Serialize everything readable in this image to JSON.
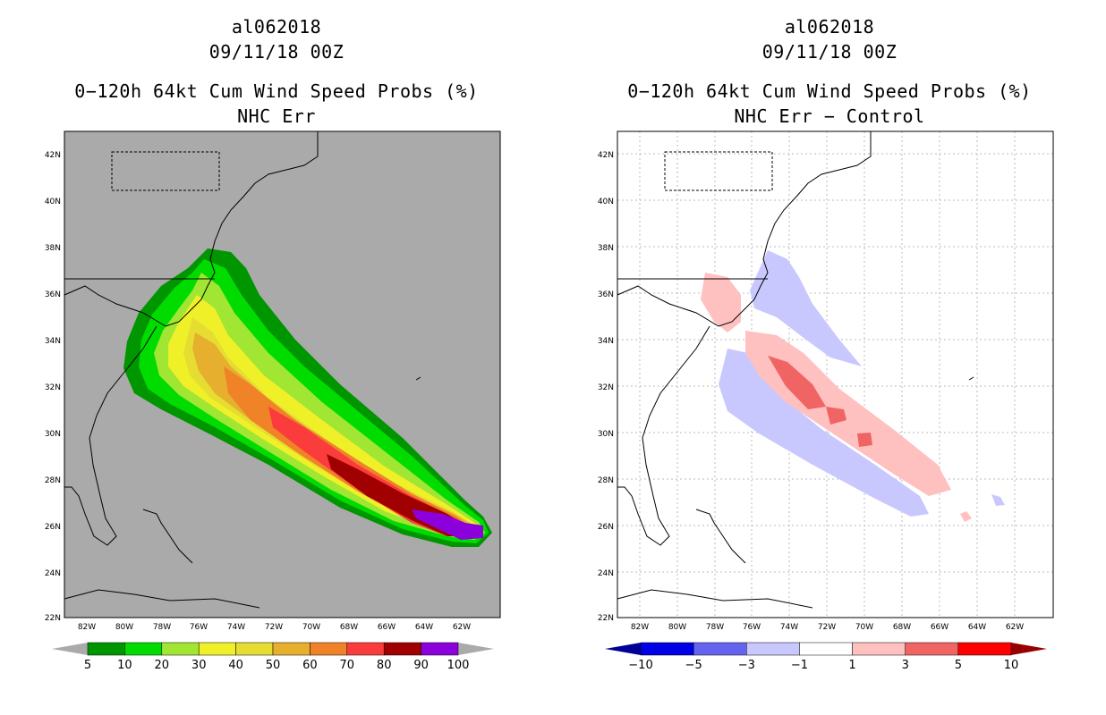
{
  "panels": [
    {
      "storm_id": "al062018",
      "datetime": "09/11/18 00Z",
      "product": "0−120h 64kt Cum Wind Speed Probs (%)",
      "subtitle": "NHC Err",
      "background": "#aaaaaa",
      "colorbar": {
        "labels": [
          "5",
          "10",
          "20",
          "30",
          "40",
          "50",
          "60",
          "70",
          "80",
          "90",
          "100"
        ],
        "colors": [
          "#009600",
          "#00dc00",
          "#a0e632",
          "#f0f028",
          "#e6dc32",
          "#e6af2d",
          "#f08228",
          "#fa3c3c",
          "#a00000",
          "#8c00dc"
        ],
        "end_color": "#aaaaaa"
      }
    },
    {
      "storm_id": "al062018",
      "datetime": "09/11/18 00Z",
      "product": "0−120h 64kt Cum Wind Speed Probs (%)",
      "subtitle": "NHC Err − Control",
      "background": "#ffffff",
      "colorbar": {
        "labels": [
          "−10",
          "−5",
          "−3",
          "−1",
          "1",
          "3",
          "5",
          "10"
        ],
        "colors": [
          "#0000e6",
          "#6464f0",
          "#c8c8ff",
          "#ffffff",
          "#ffc0c0",
          "#f06464",
          "#ff0000"
        ],
        "end_colors": [
          "#000096",
          "#960000"
        ]
      }
    }
  ],
  "axes": {
    "lat_labels": [
      "42N",
      "40N",
      "38N",
      "36N",
      "34N",
      "32N",
      "30N",
      "28N",
      "26N",
      "24N",
      "22N"
    ],
    "lon_labels": [
      "82W",
      "80W",
      "78W",
      "76W",
      "74W",
      "72W",
      "70W",
      "68W",
      "66W",
      "64W",
      "62W"
    ]
  }
}
